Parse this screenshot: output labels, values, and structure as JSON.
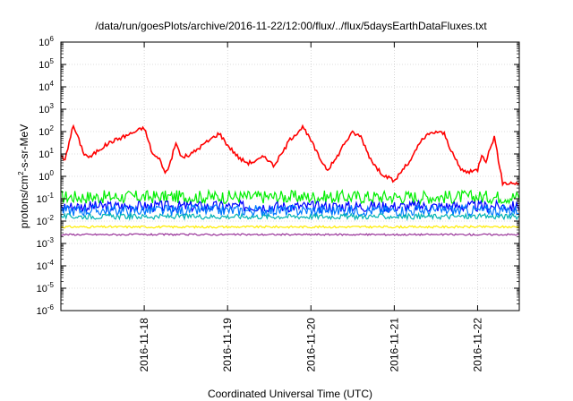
{
  "chart_data": {
    "type": "line",
    "title": "/data/run/goesPlots/archive/2016-11-22/12:00/flux/../flux/5daysEarthDataFluxes.txt",
    "xlabel": "Coordinated Universal Time (UTC)",
    "ylabel_parts": {
      "base": "protons/cm",
      "sup": "2",
      "rest": "-s-sr-MeV"
    },
    "y_scale": "log",
    "ylim": [
      1e-06,
      1000000.0
    ],
    "y_tick_exponents": [
      -6,
      -5,
      -4,
      -3,
      -2,
      -1,
      0,
      1,
      2,
      3,
      4,
      5,
      6
    ],
    "y_tick_base": "10",
    "xlim": [
      "2016-11-17 00:00",
      "2016-11-22 12:00"
    ],
    "x_tick_labels": [
      "2016-11-18",
      "2016-11-19",
      "2016-11-20",
      "2016-11-21",
      "2016-11-22"
    ],
    "grid": true,
    "legend": "none",
    "series": [
      {
        "color": "#ff0000",
        "kind": "points",
        "x_days": [
          0.0,
          0.05,
          0.1,
          0.15,
          0.2,
          0.28,
          0.35,
          0.45,
          0.6,
          0.8,
          1.0,
          1.1,
          1.2,
          1.25,
          1.3,
          1.38,
          1.45,
          1.55,
          1.7,
          1.9,
          2.0,
          2.15,
          2.25,
          2.35,
          2.45,
          2.55,
          2.65,
          2.75,
          2.9,
          3.0,
          3.1,
          3.2,
          3.3,
          3.4,
          3.5,
          3.6,
          3.7,
          3.8,
          3.9,
          4.0,
          4.1,
          4.2,
          4.3,
          4.4,
          4.5,
          4.6,
          4.7,
          4.8,
          4.9,
          5.0,
          5.05,
          5.1,
          5.2,
          5.3,
          5.4,
          5.5
        ],
        "y": [
          8,
          5,
          40,
          180,
          60,
          10,
          7,
          15,
          35,
          70,
          150,
          10,
          5,
          1.3,
          3,
          30,
          7,
          9,
          25,
          85,
          25,
          6,
          4,
          5,
          8,
          3,
          10,
          45,
          160,
          40,
          7,
          2,
          6,
          30,
          90,
          60,
          8,
          2,
          1,
          0.6,
          2,
          5,
          30,
          70,
          100,
          80,
          10,
          2,
          1.5,
          2,
          10,
          5,
          60,
          0.5,
          0.5,
          0.5
        ]
      },
      {
        "color": "#00ee00",
        "kind": "band",
        "mid": 0.12,
        "spread": 0.3
      },
      {
        "color": "#0000ff",
        "kind": "band",
        "mid": 0.045,
        "spread": 0.25
      },
      {
        "color": "#0077ff",
        "kind": "band",
        "mid": 0.03,
        "spread": 0.25
      },
      {
        "color": "#00b3b3",
        "kind": "band",
        "mid": 0.016,
        "spread": 0.12
      },
      {
        "color": "#ffee00",
        "kind": "band",
        "mid": 0.0055,
        "spread": 0.05
      },
      {
        "color": "#993399",
        "kind": "band",
        "mid": 0.0025,
        "spread": 0.04
      }
    ]
  }
}
